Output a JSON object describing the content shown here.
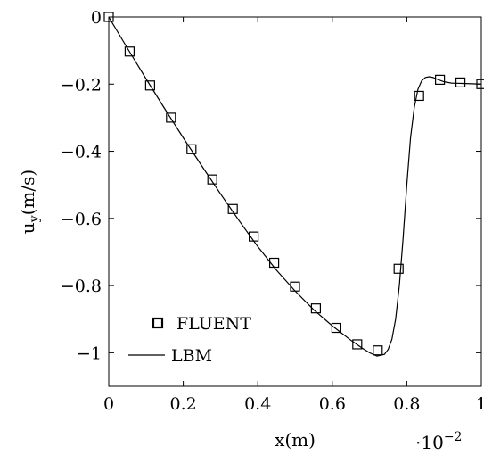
{
  "chart_data": {
    "type": "line",
    "xlabel": "x(m)",
    "ylabel": "u",
    "ylabel_subscript": "y",
    "ylabel_unit": "(m/s)",
    "x_multiplier_base": "·10",
    "x_multiplier_exp": "−2",
    "xlim": [
      0,
      1
    ],
    "ylim": [
      -1.1,
      0
    ],
    "x_ticks": [
      0,
      0.2,
      0.4,
      0.6,
      0.8,
      1
    ],
    "x_tick_labels": [
      "0",
      "0.2",
      "0.4",
      "0.6",
      "0.8",
      "1"
    ],
    "y_ticks": [
      0,
      -0.2,
      -0.4,
      -0.6,
      -0.8,
      -1
    ],
    "y_tick_labels": [
      "0",
      "−0.2",
      "−0.4",
      "−0.6",
      "−0.8",
      "−1"
    ],
    "grid": false,
    "legend_position": "bottom-left",
    "series": [
      {
        "name": "FLUENT",
        "style": "square-markers",
        "x": [
          0,
          0.056,
          0.111,
          0.167,
          0.222,
          0.278,
          0.333,
          0.389,
          0.444,
          0.5,
          0.556,
          0.611,
          0.667,
          0.722,
          0.778,
          0.833,
          0.889,
          0.944,
          1.0
        ],
        "y": [
          0,
          -0.103,
          -0.204,
          -0.3,
          -0.394,
          -0.484,
          -0.572,
          -0.654,
          -0.732,
          -0.803,
          -0.868,
          -0.926,
          -0.975,
          -0.993,
          -0.75,
          -0.235,
          -0.187,
          -0.195,
          -0.2
        ]
      },
      {
        "name": "LBM",
        "style": "solid-line",
        "x": [
          0,
          0.05,
          0.1,
          0.15,
          0.2,
          0.25,
          0.3,
          0.35,
          0.4,
          0.45,
          0.5,
          0.55,
          0.6,
          0.65,
          0.68,
          0.7,
          0.72,
          0.74,
          0.75,
          0.76,
          0.77,
          0.78,
          0.79,
          0.8,
          0.81,
          0.82,
          0.83,
          0.84,
          0.85,
          0.86,
          0.87,
          0.88,
          0.9,
          0.92,
          0.95,
          1.0
        ],
        "y": [
          0,
          -0.093,
          -0.184,
          -0.273,
          -0.36,
          -0.444,
          -0.527,
          -0.607,
          -0.684,
          -0.754,
          -0.816,
          -0.872,
          -0.92,
          -0.963,
          -0.986,
          -1.0,
          -1.01,
          -1.005,
          -0.99,
          -0.96,
          -0.9,
          -0.8,
          -0.66,
          -0.5,
          -0.36,
          -0.27,
          -0.215,
          -0.19,
          -0.18,
          -0.178,
          -0.18,
          -0.185,
          -0.193,
          -0.197,
          -0.198,
          -0.2
        ]
      }
    ]
  }
}
